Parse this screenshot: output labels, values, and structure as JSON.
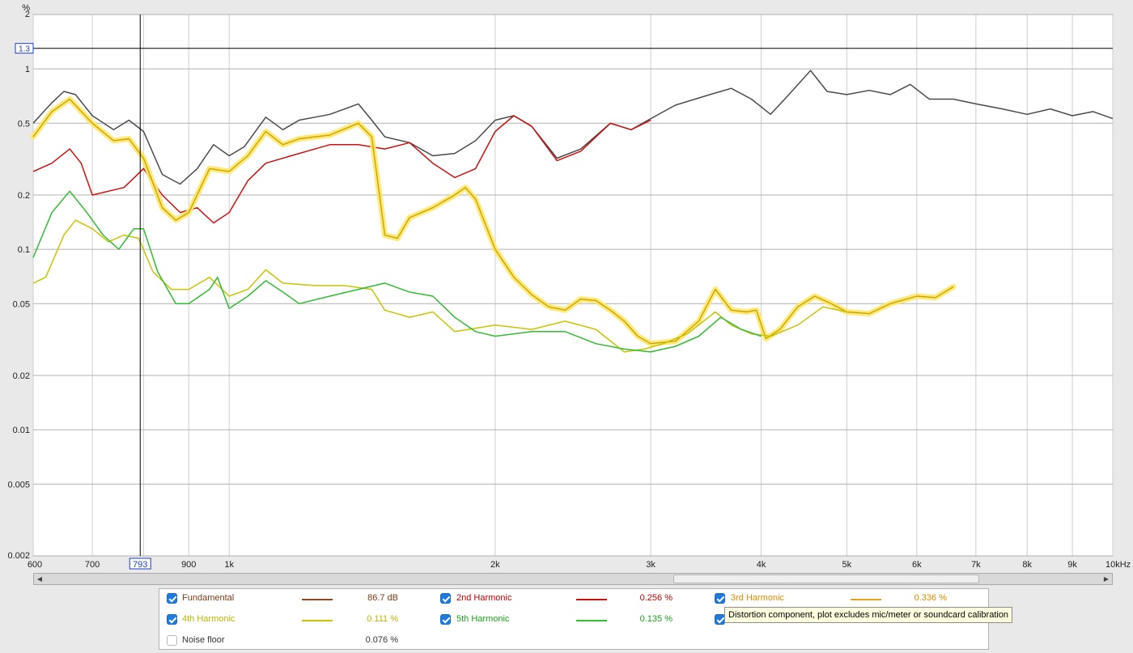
{
  "chart_data": {
    "type": "line",
    "y_scale": "log",
    "x_scale": "log",
    "ylim": [
      0.002,
      2
    ],
    "xlim": [
      600,
      10000
    ],
    "y_unit": "%",
    "x_unit": "kHz",
    "y_ticks": [
      {
        "v": 2,
        "label": "2"
      },
      {
        "v": 1,
        "label": "1"
      },
      {
        "v": 0.5,
        "label": "0.5"
      },
      {
        "v": 0.2,
        "label": "0.2"
      },
      {
        "v": 0.1,
        "label": "0.1"
      },
      {
        "v": 0.05,
        "label": "0.05"
      },
      {
        "v": 0.02,
        "label": "0.02"
      },
      {
        "v": 0.01,
        "label": "0.01"
      },
      {
        "v": 0.005,
        "label": "0.005"
      },
      {
        "v": 0.002,
        "label": "0.002"
      }
    ],
    "x_ticks": [
      {
        "v": 600,
        "label": "600"
      },
      {
        "v": 700,
        "label": "700"
      },
      {
        "v": 900,
        "label": "900"
      },
      {
        "v": 1000,
        "label": "1k"
      },
      {
        "v": 2000,
        "label": "2k"
      },
      {
        "v": 3000,
        "label": "3k"
      },
      {
        "v": 4000,
        "label": "4k"
      },
      {
        "v": 5000,
        "label": "5k"
      },
      {
        "v": 6000,
        "label": "6k"
      },
      {
        "v": 7000,
        "label": "7k"
      },
      {
        "v": 8000,
        "label": "8k"
      },
      {
        "v": 9000,
        "label": "9k"
      },
      {
        "v": 10000,
        "label": "10kHz"
      }
    ],
    "x_gridlines": [
      600,
      700,
      800,
      900,
      1000,
      2000,
      3000,
      4000,
      5000,
      6000,
      7000,
      8000,
      9000,
      10000
    ],
    "cursor": {
      "x": 793,
      "x_label": "793",
      "y": 1.3,
      "y_label": "1.3"
    },
    "series": [
      {
        "key": "fundamental",
        "color": "#4a4a4a",
        "highlight": false,
        "points": [
          [
            600,
            0.5
          ],
          [
            630,
            0.65
          ],
          [
            650,
            0.75
          ],
          [
            670,
            0.72
          ],
          [
            700,
            0.55
          ],
          [
            740,
            0.46
          ],
          [
            770,
            0.52
          ],
          [
            800,
            0.45
          ],
          [
            840,
            0.26
          ],
          [
            880,
            0.23
          ],
          [
            920,
            0.28
          ],
          [
            960,
            0.38
          ],
          [
            1000,
            0.33
          ],
          [
            1040,
            0.37
          ],
          [
            1100,
            0.54
          ],
          [
            1150,
            0.46
          ],
          [
            1200,
            0.52
          ],
          [
            1300,
            0.56
          ],
          [
            1400,
            0.64
          ],
          [
            1450,
            0.52
          ],
          [
            1500,
            0.42
          ],
          [
            1600,
            0.39
          ],
          [
            1700,
            0.33
          ],
          [
            1800,
            0.34
          ],
          [
            1900,
            0.4
          ],
          [
            2000,
            0.52
          ],
          [
            2100,
            0.55
          ],
          [
            2200,
            0.48
          ],
          [
            2350,
            0.32
          ],
          [
            2500,
            0.36
          ],
          [
            2700,
            0.5
          ],
          [
            2850,
            0.46
          ],
          [
            3000,
            0.53
          ],
          [
            3200,
            0.63
          ],
          [
            3500,
            0.72
          ],
          [
            3700,
            0.78
          ],
          [
            3900,
            0.68
          ],
          [
            4100,
            0.56
          ],
          [
            4300,
            0.72
          ],
          [
            4550,
            0.98
          ],
          [
            4750,
            0.75
          ],
          [
            5000,
            0.72
          ],
          [
            5300,
            0.76
          ],
          [
            5600,
            0.72
          ],
          [
            5900,
            0.82
          ],
          [
            6200,
            0.68
          ],
          [
            6600,
            0.68
          ],
          [
            7000,
            0.64
          ],
          [
            7500,
            0.6
          ],
          [
            8000,
            0.56
          ],
          [
            8500,
            0.6
          ],
          [
            9000,
            0.55
          ],
          [
            9500,
            0.58
          ],
          [
            10000,
            0.53
          ]
        ]
      },
      {
        "key": "second",
        "color": "#cc1010",
        "highlight": false,
        "points": [
          [
            600,
            0.27
          ],
          [
            630,
            0.3
          ],
          [
            660,
            0.36
          ],
          [
            680,
            0.3
          ],
          [
            700,
            0.2
          ],
          [
            730,
            0.21
          ],
          [
            760,
            0.22
          ],
          [
            800,
            0.28
          ],
          [
            840,
            0.2
          ],
          [
            880,
            0.16
          ],
          [
            920,
            0.17
          ],
          [
            960,
            0.14
          ],
          [
            1000,
            0.16
          ],
          [
            1050,
            0.24
          ],
          [
            1100,
            0.3
          ],
          [
            1200,
            0.34
          ],
          [
            1300,
            0.38
          ],
          [
            1400,
            0.38
          ],
          [
            1500,
            0.36
          ],
          [
            1600,
            0.39
          ],
          [
            1700,
            0.3
          ],
          [
            1800,
            0.25
          ],
          [
            1900,
            0.28
          ],
          [
            2000,
            0.45
          ],
          [
            2100,
            0.55
          ],
          [
            2200,
            0.48
          ],
          [
            2350,
            0.31
          ],
          [
            2500,
            0.35
          ],
          [
            2700,
            0.5
          ],
          [
            2850,
            0.46
          ],
          [
            3000,
            0.52
          ]
        ]
      },
      {
        "key": "third",
        "color": "#f0c800",
        "highlight": true,
        "points": [
          [
            600,
            0.42
          ],
          [
            630,
            0.58
          ],
          [
            660,
            0.68
          ],
          [
            700,
            0.5
          ],
          [
            740,
            0.4
          ],
          [
            770,
            0.41
          ],
          [
            800,
            0.32
          ],
          [
            840,
            0.17
          ],
          [
            870,
            0.145
          ],
          [
            900,
            0.16
          ],
          [
            950,
            0.28
          ],
          [
            1000,
            0.27
          ],
          [
            1050,
            0.33
          ],
          [
            1100,
            0.45
          ],
          [
            1150,
            0.38
          ],
          [
            1200,
            0.41
          ],
          [
            1300,
            0.43
          ],
          [
            1400,
            0.5
          ],
          [
            1450,
            0.42
          ],
          [
            1500,
            0.12
          ],
          [
            1550,
            0.115
          ],
          [
            1600,
            0.15
          ],
          [
            1700,
            0.17
          ],
          [
            1800,
            0.2
          ],
          [
            1850,
            0.22
          ],
          [
            1900,
            0.19
          ],
          [
            2000,
            0.1
          ],
          [
            2100,
            0.07
          ],
          [
            2200,
            0.056
          ],
          [
            2300,
            0.048
          ],
          [
            2400,
            0.046
          ],
          [
            2500,
            0.053
          ],
          [
            2600,
            0.052
          ],
          [
            2700,
            0.046
          ],
          [
            2800,
            0.04
          ],
          [
            2900,
            0.033
          ],
          [
            3000,
            0.03
          ],
          [
            3200,
            0.031
          ],
          [
            3400,
            0.04
          ],
          [
            3550,
            0.06
          ],
          [
            3700,
            0.046
          ],
          [
            3850,
            0.045
          ],
          [
            3950,
            0.046
          ],
          [
            4050,
            0.032
          ],
          [
            4200,
            0.036
          ],
          [
            4400,
            0.048
          ],
          [
            4600,
            0.055
          ],
          [
            4800,
            0.05
          ],
          [
            5000,
            0.045
          ],
          [
            5300,
            0.044
          ],
          [
            5600,
            0.05
          ],
          [
            6000,
            0.055
          ],
          [
            6300,
            0.054
          ],
          [
            6600,
            0.062
          ]
        ]
      },
      {
        "key": "fourth",
        "color": "#c8c400",
        "highlight": false,
        "points": [
          [
            600,
            0.065
          ],
          [
            620,
            0.07
          ],
          [
            650,
            0.12
          ],
          [
            670,
            0.145
          ],
          [
            700,
            0.13
          ],
          [
            730,
            0.11
          ],
          [
            760,
            0.12
          ],
          [
            790,
            0.115
          ],
          [
            820,
            0.075
          ],
          [
            860,
            0.06
          ],
          [
            900,
            0.06
          ],
          [
            950,
            0.07
          ],
          [
            1000,
            0.055
          ],
          [
            1050,
            0.06
          ],
          [
            1100,
            0.077
          ],
          [
            1150,
            0.065
          ],
          [
            1250,
            0.063
          ],
          [
            1350,
            0.063
          ],
          [
            1450,
            0.06
          ],
          [
            1500,
            0.046
          ],
          [
            1600,
            0.042
          ],
          [
            1700,
            0.045
          ],
          [
            1800,
            0.035
          ],
          [
            2000,
            0.038
          ],
          [
            2200,
            0.036
          ],
          [
            2400,
            0.04
          ],
          [
            2600,
            0.036
          ],
          [
            2800,
            0.027
          ],
          [
            2950,
            0.028
          ],
          [
            3100,
            0.03
          ],
          [
            3300,
            0.034
          ],
          [
            3550,
            0.045
          ],
          [
            3700,
            0.038
          ],
          [
            3900,
            0.034
          ],
          [
            4100,
            0.033
          ],
          [
            4400,
            0.038
          ],
          [
            4700,
            0.048
          ],
          [
            5000,
            0.045
          ]
        ]
      },
      {
        "key": "fifth",
        "color": "#33bb33",
        "highlight": false,
        "points": [
          [
            600,
            0.09
          ],
          [
            630,
            0.16
          ],
          [
            660,
            0.21
          ],
          [
            690,
            0.16
          ],
          [
            720,
            0.12
          ],
          [
            750,
            0.1
          ],
          [
            780,
            0.13
          ],
          [
            800,
            0.13
          ],
          [
            830,
            0.075
          ],
          [
            870,
            0.05
          ],
          [
            900,
            0.05
          ],
          [
            950,
            0.06
          ],
          [
            970,
            0.07
          ],
          [
            1000,
            0.047
          ],
          [
            1050,
            0.055
          ],
          [
            1100,
            0.067
          ],
          [
            1150,
            0.058
          ],
          [
            1200,
            0.05
          ],
          [
            1300,
            0.055
          ],
          [
            1400,
            0.06
          ],
          [
            1500,
            0.065
          ],
          [
            1600,
            0.058
          ],
          [
            1700,
            0.055
          ],
          [
            1800,
            0.042
          ],
          [
            1900,
            0.035
          ],
          [
            2000,
            0.033
          ],
          [
            2200,
            0.035
          ],
          [
            2400,
            0.035
          ],
          [
            2600,
            0.03
          ],
          [
            2800,
            0.028
          ],
          [
            3000,
            0.027
          ],
          [
            3200,
            0.029
          ],
          [
            3400,
            0.033
          ],
          [
            3600,
            0.042
          ],
          [
            3800,
            0.036
          ],
          [
            4000,
            0.033
          ]
        ]
      }
    ]
  },
  "legend": {
    "fundamental": {
      "label": "Fundamental",
      "value": "86.7 dB",
      "checked": true,
      "color": "#8b4b22",
      "label_color": "#7a3a16"
    },
    "second": {
      "label": "2nd Harmonic",
      "value": "0.256 %",
      "checked": true,
      "color": "#cc1010",
      "label_color": "#c00000"
    },
    "third": {
      "label": "3rd Harmonic",
      "value": "0.336 %",
      "checked": true,
      "color": "#e8a020",
      "label_color": "#dd8b00"
    },
    "fourth": {
      "label": "4th Harmonic",
      "value": "0.111 %",
      "checked": true,
      "color": "#c8c400",
      "label_color": "#b9b600"
    },
    "fifth": {
      "label": "5th Harmonic",
      "value": "0.135 %",
      "checked": true,
      "color": "#33bb33",
      "label_color": "#1f9f1f"
    },
    "noise": {
      "label": "Noise floor",
      "value": "0.076 %",
      "checked": false,
      "label_color": "#333333"
    }
  },
  "tooltip": "Distortion component, plot excludes mic/meter or soundcard calibration"
}
